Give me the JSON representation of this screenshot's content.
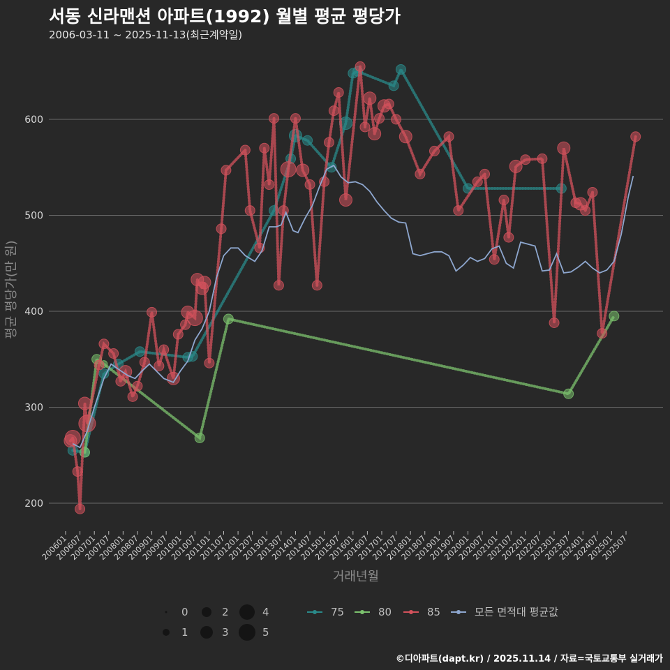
{
  "title": "서동 신라맨션 아파트(1992) 월별 평균 평당가",
  "subtitle": "2006-03-11 ~ 2025-11-13(최근계약일)",
  "caption": "©디아파트(dapt.kr) / 2025.11.14 / 자료=국토교통부 실거래가",
  "chart_data": {
    "type": "line",
    "xlabel": "거래년월",
    "ylabel": "평균 평당가(만 원)",
    "x_range": [
      "200601",
      "202511"
    ],
    "ylim": [
      180,
      670
    ],
    "yticks": [
      200,
      300,
      400,
      500,
      600
    ],
    "xticks": [
      "200601",
      "200607",
      "200701",
      "200707",
      "200801",
      "200807",
      "200901",
      "200907",
      "201001",
      "201007",
      "201101",
      "201107",
      "201201",
      "201207",
      "201301",
      "201307",
      "201401",
      "201407",
      "201501",
      "201507",
      "201601",
      "201607",
      "201701",
      "201707",
      "201801",
      "201807",
      "201901",
      "201907",
      "202001",
      "202007",
      "202101",
      "202107",
      "202201",
      "202207",
      "202301",
      "202307",
      "202401",
      "202407",
      "202501",
      "202507"
    ],
    "colors": {
      "75": "#2a8a8a",
      "80": "#7cc26e",
      "85": "#d4525c",
      "all": "#8ea7cf",
      "grid": "#6a6a6a"
    },
    "size_legend": [
      0,
      1,
      2,
      3,
      4,
      5
    ],
    "series": [
      {
        "name": "75",
        "points": [
          [
            "200604",
            255,
            2
          ],
          [
            "200609",
            253,
            2
          ],
          [
            "200705",
            335,
            2
          ],
          [
            "200711",
            345,
            2
          ],
          [
            "200808",
            358,
            2
          ],
          [
            "201004",
            352,
            2
          ],
          [
            "201006",
            353,
            2
          ],
          [
            "201304",
            505,
            2
          ],
          [
            "201311",
            559,
            2
          ],
          [
            "201401",
            583,
            3
          ],
          [
            "201406",
            578,
            2
          ],
          [
            "201504",
            550,
            2
          ],
          [
            "201510",
            596,
            3
          ],
          [
            "201601",
            648,
            2
          ],
          [
            "201603",
            650,
            2
          ],
          [
            "201706",
            635,
            2
          ],
          [
            "201709",
            652,
            2
          ],
          [
            "202001",
            528,
            2
          ],
          [
            "202304",
            528,
            2
          ]
        ]
      },
      {
        "name": "80",
        "points": [
          [
            "200609",
            253,
            2
          ],
          [
            "200702",
            350,
            2
          ],
          [
            "200705",
            345,
            1
          ],
          [
            "201009",
            268,
            2
          ],
          [
            "201109",
            392,
            2
          ],
          [
            "202307",
            314,
            2
          ],
          [
            "202502",
            395,
            2
          ]
        ]
      },
      {
        "name": "85",
        "points": [
          [
            "200603",
            265,
            3
          ],
          [
            "200604",
            268,
            4
          ],
          [
            "200606",
            233,
            2
          ],
          [
            "200607",
            194,
            2
          ],
          [
            "200609",
            304,
            3
          ],
          [
            "200610",
            283,
            5
          ],
          [
            "200703",
            344,
            2
          ],
          [
            "200705",
            366,
            2
          ],
          [
            "200709",
            356,
            2
          ],
          [
            "200712",
            327,
            2
          ],
          [
            "200802",
            337,
            3
          ],
          [
            "200805",
            311,
            2
          ],
          [
            "200807",
            322,
            2
          ],
          [
            "200810",
            347,
            2
          ],
          [
            "200901",
            399,
            2
          ],
          [
            "200904",
            343,
            2
          ],
          [
            "200906",
            360,
            2
          ],
          [
            "200910",
            330,
            3
          ],
          [
            "200912",
            376,
            2
          ],
          [
            "201003",
            386,
            2
          ],
          [
            "201004",
            399,
            3
          ],
          [
            "201007",
            393,
            4
          ],
          [
            "201008",
            433,
            3
          ],
          [
            "201010",
            424,
            3
          ],
          [
            "201011",
            430,
            3
          ],
          [
            "201101",
            346,
            2
          ],
          [
            "201106",
            486,
            2
          ],
          [
            "201108",
            547,
            2
          ],
          [
            "201204",
            568,
            2
          ],
          [
            "201206",
            505,
            2
          ],
          [
            "201210",
            466,
            2
          ],
          [
            "201212",
            570,
            2
          ],
          [
            "201302",
            532,
            2
          ],
          [
            "201304",
            601,
            2
          ],
          [
            "201306",
            427,
            2
          ],
          [
            "201308",
            505,
            2
          ],
          [
            "201310",
            548,
            4
          ],
          [
            "201401",
            601,
            2
          ],
          [
            "201404",
            547,
            3
          ],
          [
            "201407",
            532,
            2
          ],
          [
            "201410",
            427,
            2
          ],
          [
            "201501",
            535,
            2
          ],
          [
            "201503",
            576,
            2
          ],
          [
            "201505",
            609,
            2
          ],
          [
            "201507",
            628,
            2
          ],
          [
            "201510",
            516,
            3
          ],
          [
            "201604",
            655,
            2
          ],
          [
            "201606",
            592,
            2
          ],
          [
            "201608",
            622,
            3
          ],
          [
            "201610",
            585,
            3
          ],
          [
            "201612",
            601,
            2
          ],
          [
            "201702",
            614,
            3
          ],
          [
            "201704",
            616,
            2
          ],
          [
            "201707",
            600,
            2
          ],
          [
            "201711",
            582,
            3
          ],
          [
            "201805",
            543,
            2
          ],
          [
            "201811",
            567,
            2
          ],
          [
            "201905",
            582,
            2
          ],
          [
            "201909",
            505,
            2
          ],
          [
            "202005",
            535,
            2
          ],
          [
            "202008",
            543,
            2
          ],
          [
            "202012",
            454,
            2
          ],
          [
            "202104",
            516,
            2
          ],
          [
            "202106",
            477,
            2
          ],
          [
            "202109",
            551,
            3
          ],
          [
            "202201",
            558,
            2
          ],
          [
            "202208",
            559,
            2
          ],
          [
            "202301",
            388,
            2
          ],
          [
            "202305",
            570,
            3
          ],
          [
            "202310",
            513,
            2
          ],
          [
            "202312",
            512,
            3
          ],
          [
            "202402",
            505,
            2
          ],
          [
            "202405",
            524,
            2
          ],
          [
            "202409",
            377,
            2
          ],
          [
            "202511",
            582,
            2
          ]
        ]
      },
      {
        "name": "모든 면적대 평균값",
        "points": [
          [
            "200604",
            262
          ],
          [
            "200607",
            258
          ],
          [
            "200610",
            275
          ],
          [
            "200701",
            300
          ],
          [
            "200705",
            330
          ],
          [
            "200708",
            345
          ],
          [
            "200712",
            338
          ],
          [
            "200803",
            333
          ],
          [
            "200806",
            330
          ],
          [
            "200809",
            338
          ],
          [
            "200812",
            345
          ],
          [
            "200902",
            340
          ],
          [
            "200906",
            330
          ],
          [
            "200910",
            326
          ],
          [
            "201001",
            338
          ],
          [
            "201004",
            348
          ],
          [
            "201007",
            370
          ],
          [
            "201010",
            382
          ],
          [
            "201101",
            400
          ],
          [
            "201104",
            435
          ],
          [
            "201107",
            458
          ],
          [
            "201110",
            466
          ],
          [
            "201201",
            466
          ],
          [
            "201204",
            458
          ],
          [
            "201208",
            452
          ],
          [
            "201211",
            463
          ],
          [
            "201302",
            488
          ],
          [
            "201305",
            488
          ],
          [
            "201307",
            490
          ],
          [
            "201309",
            503
          ],
          [
            "201312",
            484
          ],
          [
            "201402",
            482
          ],
          [
            "201405",
            497
          ],
          [
            "201408",
            510
          ],
          [
            "201411",
            530
          ],
          [
            "201502",
            548
          ],
          [
            "201505",
            552
          ],
          [
            "201508",
            540
          ],
          [
            "201511",
            534
          ],
          [
            "201602",
            535
          ],
          [
            "201605",
            532
          ],
          [
            "201608",
            525
          ],
          [
            "201611",
            514
          ],
          [
            "201702",
            505
          ],
          [
            "201705",
            497
          ],
          [
            "201708",
            493
          ],
          [
            "201711",
            492
          ],
          [
            "201802",
            460
          ],
          [
            "201805",
            458
          ],
          [
            "201808",
            460
          ],
          [
            "201811",
            462
          ],
          [
            "201902",
            462
          ],
          [
            "201905",
            458
          ],
          [
            "201908",
            442
          ],
          [
            "201911",
            448
          ],
          [
            "202002",
            456
          ],
          [
            "202005",
            452
          ],
          [
            "202008",
            455
          ],
          [
            "202011",
            465
          ],
          [
            "202102",
            468
          ],
          [
            "202105",
            450
          ],
          [
            "202108",
            445
          ],
          [
            "202111",
            472
          ],
          [
            "202202",
            470
          ],
          [
            "202205",
            468
          ],
          [
            "202208",
            442
          ],
          [
            "202211",
            443
          ],
          [
            "202302",
            460
          ],
          [
            "202305",
            440
          ],
          [
            "202308",
            441
          ],
          [
            "202311",
            446
          ],
          [
            "202402",
            452
          ],
          [
            "202405",
            445
          ],
          [
            "202408",
            440
          ],
          [
            "202411",
            443
          ],
          [
            "202502",
            452
          ],
          [
            "202505",
            480
          ],
          [
            "202508",
            520
          ],
          [
            "202510",
            541
          ]
        ]
      }
    ]
  }
}
